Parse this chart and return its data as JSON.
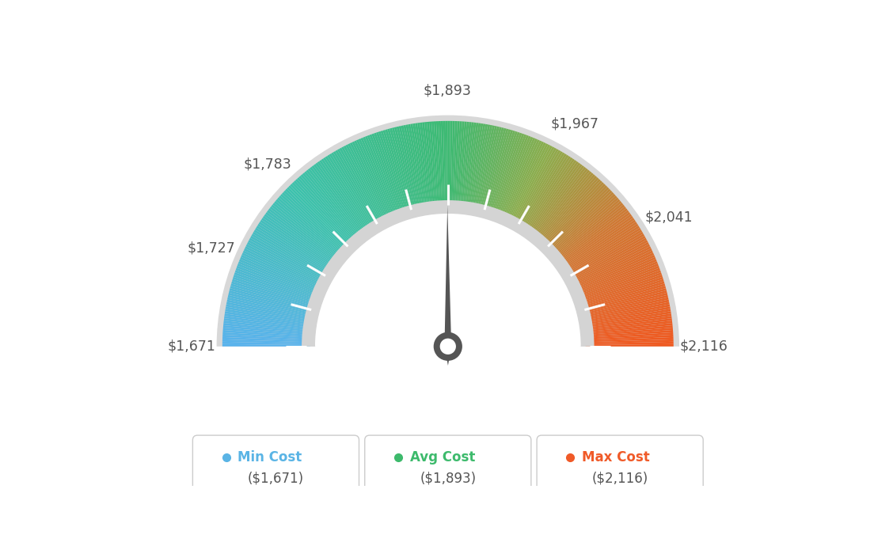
{
  "min_val": 1671,
  "max_val": 2116,
  "avg_val": 1893,
  "min_cost_label": "Min Cost",
  "avg_cost_label": "Avg Cost",
  "max_cost_label": "Max Cost",
  "min_cost_val": "($1,671)",
  "avg_cost_val": "($1,893)",
  "max_cost_val": "($2,116)",
  "min_color": "#5ab4e5",
  "avg_color": "#3dba6c",
  "max_color": "#f05a28",
  "background_color": "#ffffff",
  "needle_color": "#555555",
  "label_color": "#555555",
  "border_color": "#cccccc",
  "color_stops": [
    [
      0.0,
      [
        0.35,
        0.7,
        0.93
      ]
    ],
    [
      0.25,
      [
        0.24,
        0.76,
        0.68
      ]
    ],
    [
      0.5,
      [
        0.24,
        0.73,
        0.45
      ]
    ],
    [
      0.65,
      [
        0.55,
        0.68,
        0.3
      ]
    ],
    [
      0.8,
      [
        0.82,
        0.47,
        0.2
      ]
    ],
    [
      1.0,
      [
        0.94,
        0.35,
        0.13
      ]
    ]
  ]
}
